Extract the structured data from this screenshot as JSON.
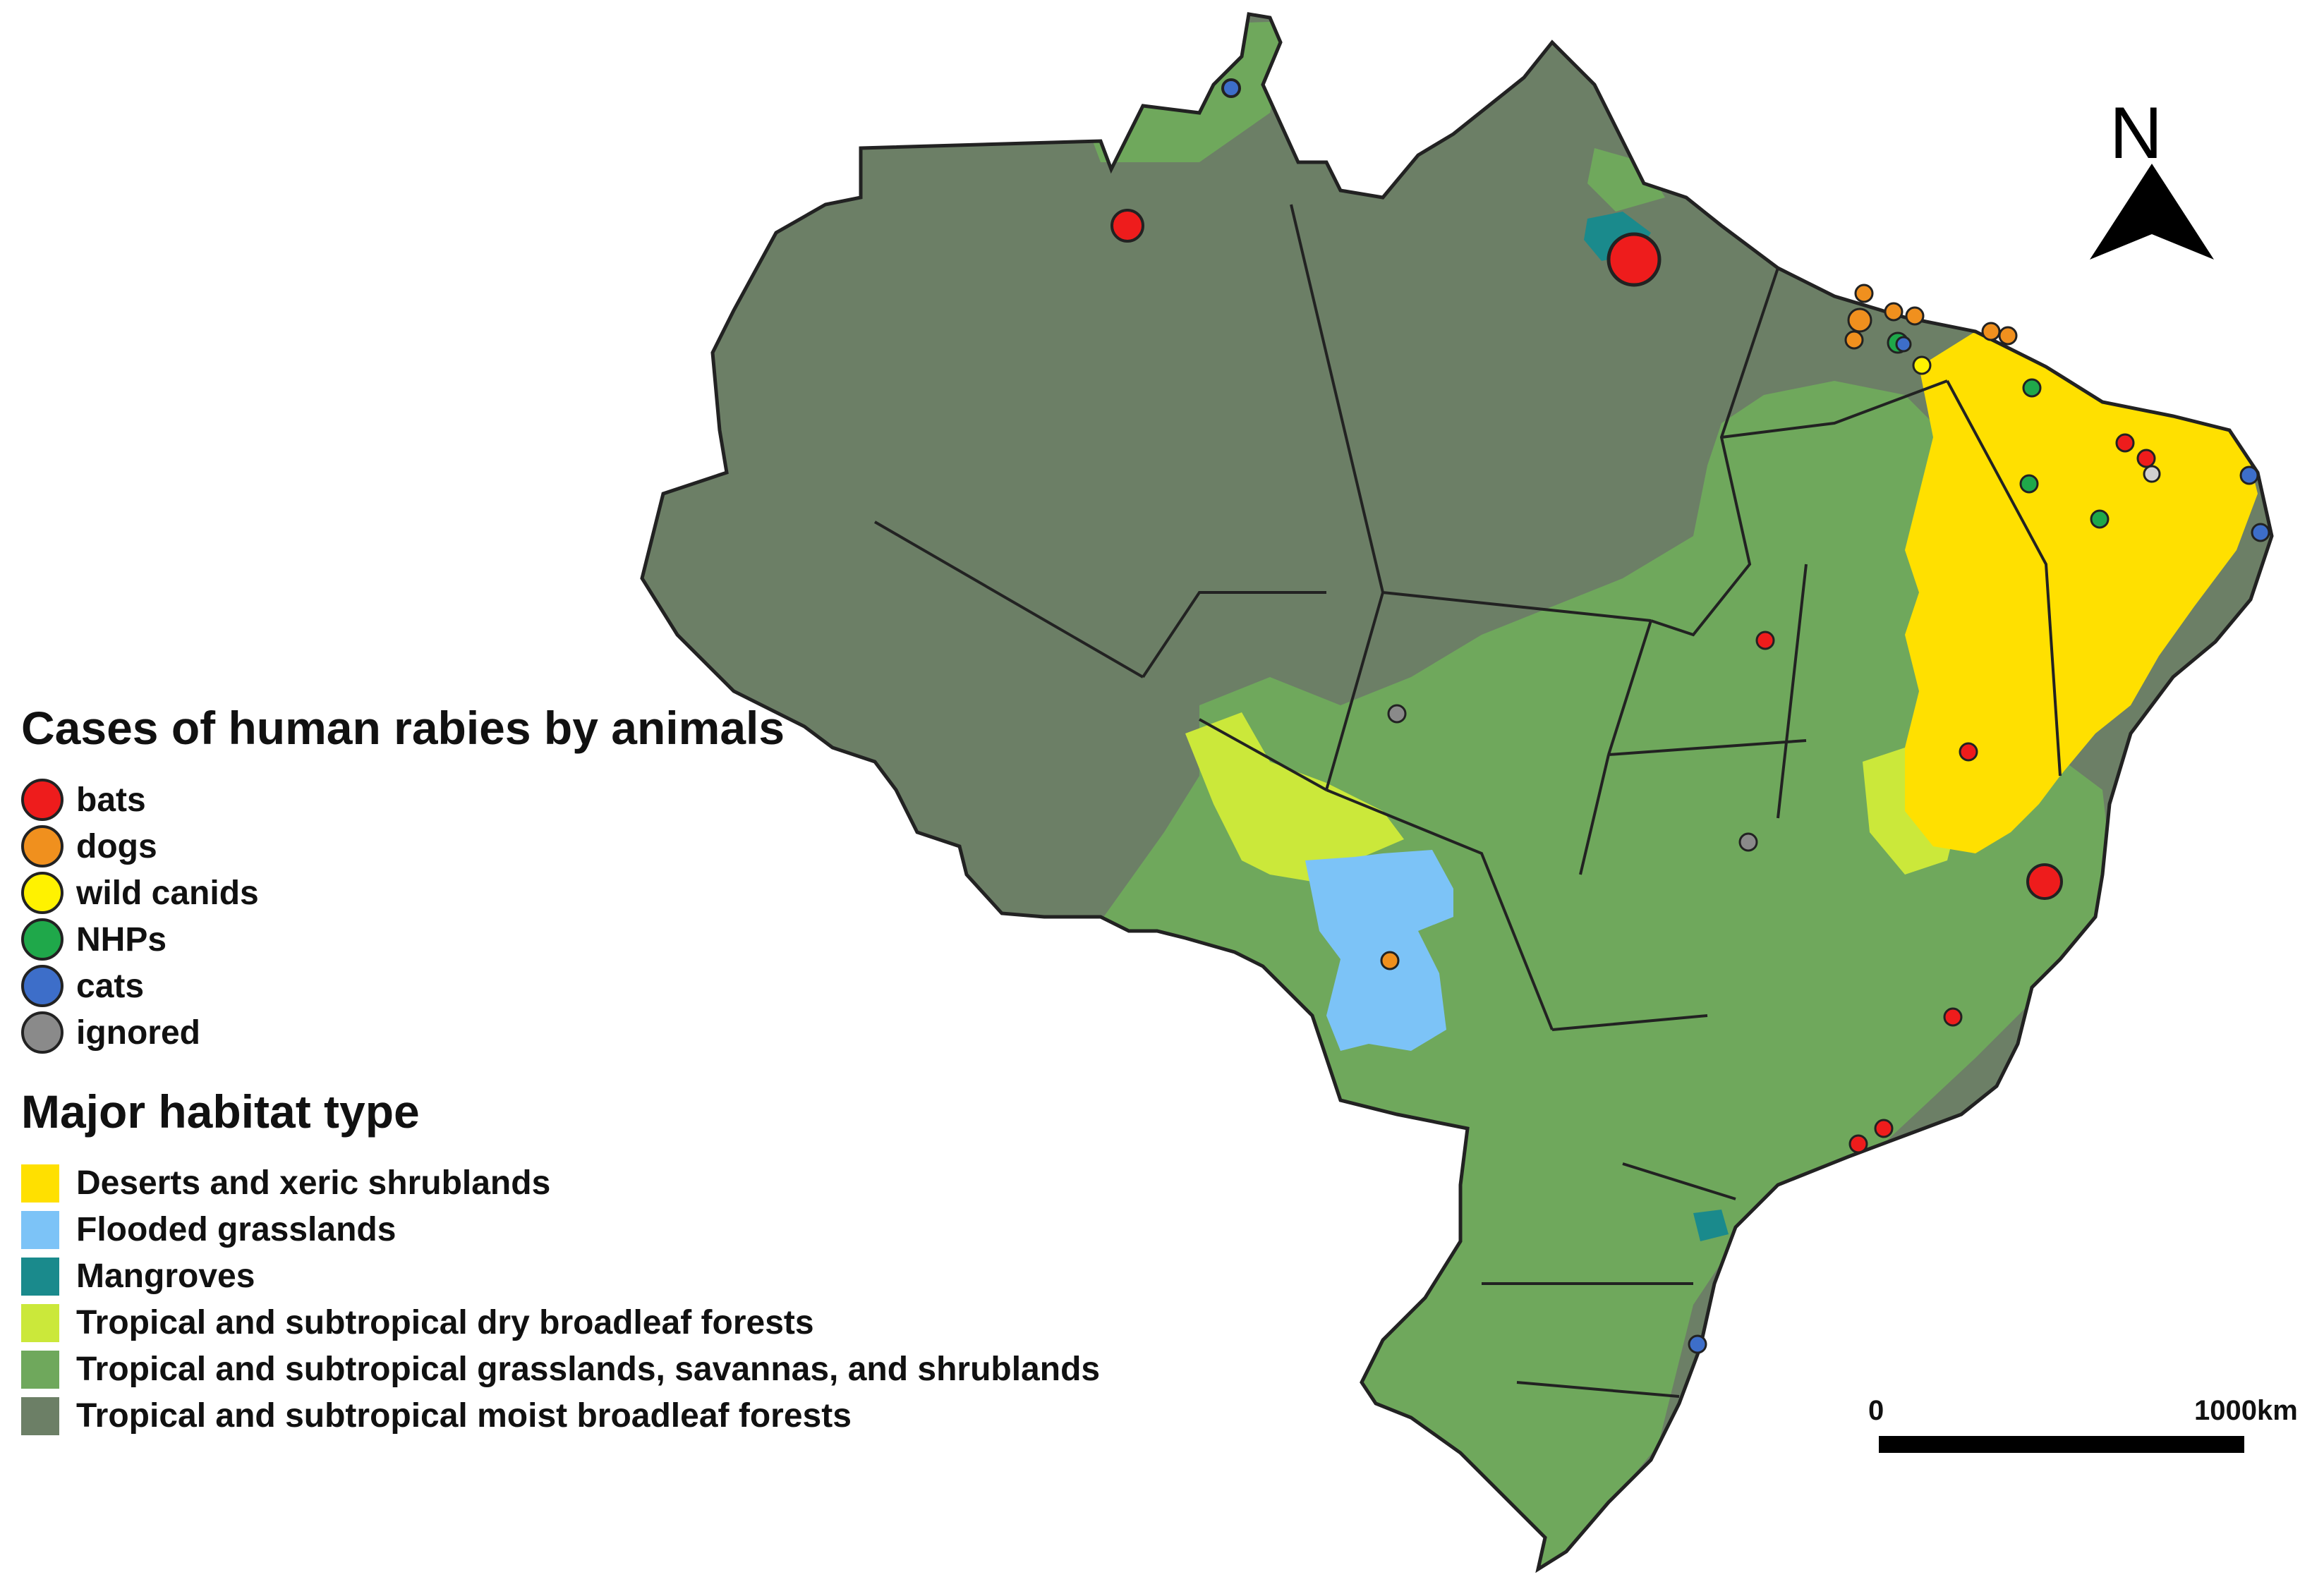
{
  "legend_animals": {
    "title": "Cases of human rabies by animals",
    "items": [
      {
        "label": "bats",
        "color": "#ee1c1c"
      },
      {
        "label": "dogs",
        "color": "#f0901e"
      },
      {
        "label": "wild canids",
        "color": "#fff200"
      },
      {
        "label": "NHPs",
        "color": "#1fa84a"
      },
      {
        "label": "cats",
        "color": "#3d6ec9"
      },
      {
        "label": "ignored",
        "color": "#8a8a8a"
      }
    ]
  },
  "legend_habitat": {
    "title": "Major habitat type",
    "items": [
      {
        "label": "Deserts and xeric shrublands",
        "color": "#ffe000"
      },
      {
        "label": "Flooded grasslands",
        "color": "#7cc3f7"
      },
      {
        "label": "Mangroves",
        "color": "#1a8a8c"
      },
      {
        "label": "Tropical and subtropical dry broadleaf forests",
        "color": "#cbe83a"
      },
      {
        "label": "Tropical and subtropical grasslands, savannas, and shrublands",
        "color": "#6fa85c"
      },
      {
        "label": "Tropical and subtropical moist broadleaf forests",
        "color": "#6c7f66"
      }
    ]
  },
  "north_arrow": {
    "label": "N",
    "icon": "north-arrow-icon"
  },
  "scale_bar": {
    "start_label": "0",
    "end_label": "1000km"
  }
}
